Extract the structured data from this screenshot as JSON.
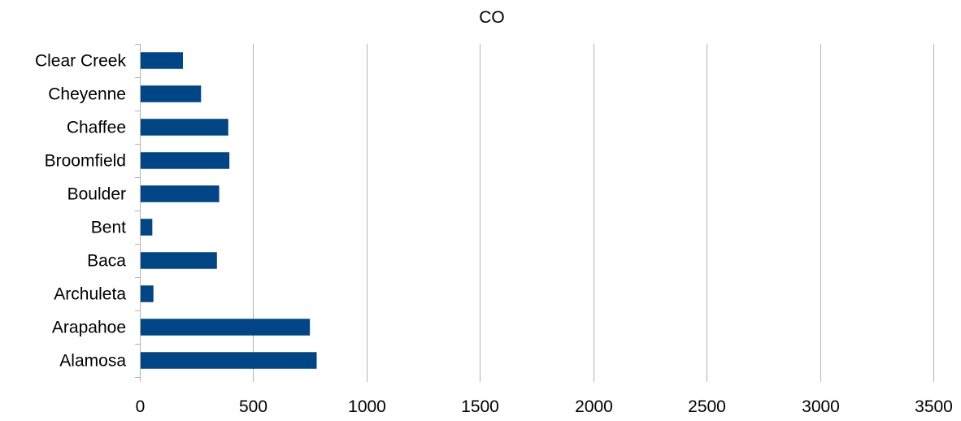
{
  "chart_data": {
    "type": "bar",
    "orientation": "horizontal",
    "title": "CO",
    "xlabel": "",
    "ylabel": "",
    "categories": [
      "Alamosa",
      "Arapahoe",
      "Archuleta",
      "Baca",
      "Bent",
      "Boulder",
      "Broomfield",
      "Chaffee",
      "Cheyenne",
      "Clear Creek"
    ],
    "values": [
      780,
      750,
      60,
      340,
      55,
      350,
      395,
      390,
      270,
      190
    ],
    "xlim": [
      0,
      3500
    ],
    "x_ticks": [
      "0",
      "500",
      "1000",
      "1500",
      "2000",
      "2500",
      "3000",
      "3500"
    ],
    "grid": true,
    "legend": "none",
    "bar_color": "#004586"
  }
}
